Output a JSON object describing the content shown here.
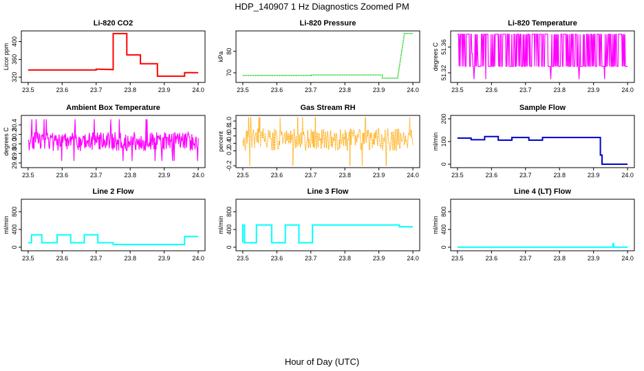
{
  "figure": {
    "title": "HDP_140907  1 Hz Diagnostics Zoomed PM",
    "xlabel": "Hour of Day (UTC)"
  },
  "chart_data": [
    {
      "type": "line",
      "title": "Li-820 CO2",
      "ylabel": "Licor ppm",
      "color": "#ff0000",
      "xlim": [
        23.48,
        24.02
      ],
      "ylim": [
        308,
        424
      ],
      "xticks": [
        "23.5",
        "23.6",
        "23.7",
        "23.8",
        "23.9",
        "24.0"
      ],
      "xtick_values": [
        23.5,
        23.6,
        23.7,
        23.8,
        23.9,
        24.0
      ],
      "yticks": [
        "320",
        "360",
        "400"
      ],
      "ytick_values": [
        320,
        360,
        400
      ],
      "series": [
        {
          "style": "steps",
          "x": [
            23.5,
            23.7,
            23.7,
            23.75,
            23.75,
            23.79,
            23.79,
            23.83,
            23.83,
            23.88,
            23.88,
            23.96,
            23.96,
            24.0
          ],
          "y": [
            336,
            336,
            338,
            337,
            418,
            418,
            370,
            370,
            350,
            350,
            322,
            322,
            330,
            330
          ]
        }
      ]
    },
    {
      "type": "line",
      "title": "Li-820 Pressure",
      "ylabel": "kPa",
      "color": "#00cc00",
      "xlim": [
        23.48,
        24.02
      ],
      "ylim": [
        65.5,
        89.5
      ],
      "xticks": [
        "23.5",
        "23.6",
        "23.7",
        "23.8",
        "23.9",
        "24.0"
      ],
      "xtick_values": [
        23.5,
        23.6,
        23.7,
        23.8,
        23.9,
        24.0
      ],
      "yticks": [
        "70",
        "80"
      ],
      "ytick_values": [
        70,
        80
      ],
      "series": [
        {
          "style": "points",
          "x": [
            23.5,
            23.7,
            23.7,
            23.91,
            23.91,
            23.955,
            23.97,
            23.975,
            24.0
          ],
          "y": [
            68.8,
            68.8,
            69.0,
            69.0,
            67.5,
            67.5,
            83,
            88.3,
            88.3
          ]
        }
      ]
    },
    {
      "type": "line",
      "title": "Li-820 Temperature",
      "ylabel": "degrees C",
      "color": "#ff00ff",
      "xlim": [
        23.48,
        24.02
      ],
      "ylim": [
        51.305,
        51.385
      ],
      "xticks": [
        "23.5",
        "23.6",
        "23.7",
        "23.8",
        "23.9",
        "24.0"
      ],
      "xtick_values": [
        23.5,
        23.6,
        23.7,
        23.8,
        23.9,
        24.0
      ],
      "yticks": [
        "51.32",
        "51.36"
      ],
      "ytick_values": [
        51.32,
        51.36
      ],
      "series": [
        {
          "style": "noise",
          "levels": [
            51.31,
            51.33,
            51.35,
            51.38
          ],
          "dominant": [
            51.33,
            51.38
          ]
        }
      ]
    },
    {
      "type": "line",
      "title": "Ambient Box Temperature",
      "ylabel": "degrees C",
      "color": "#ff00ff",
      "xlim": [
        23.48,
        24.02
      ],
      "ylim": [
        29.5,
        30.6
      ],
      "xticks": [
        "23.5",
        "23.6",
        "23.7",
        "23.8",
        "23.9",
        "24.0"
      ],
      "xtick_values": [
        23.5,
        23.6,
        23.7,
        23.8,
        23.9,
        24.0
      ],
      "yticks": [
        "29.6",
        "29.8",
        "30.0",
        "30.2",
        "30.4"
      ],
      "ytick_values": [
        29.6,
        29.8,
        30.0,
        30.2,
        30.4
      ],
      "series": [
        {
          "style": "noise",
          "mean": 30.05,
          "spread": 0.2,
          "min": 29.64,
          "max": 30.52
        }
      ]
    },
    {
      "type": "line",
      "title": "Gas Stream RH",
      "ylabel": "percent",
      "color": "#ffa500",
      "xlim": [
        23.48,
        24.02
      ],
      "ylim": [
        -0.25,
        1.15
      ],
      "xticks": [
        "23.5",
        "23.6",
        "23.7",
        "23.8",
        "23.9",
        "24.0"
      ],
      "xtick_values": [
        23.5,
        23.6,
        23.7,
        23.8,
        23.9,
        24.0
      ],
      "yticks": [
        "-0.2",
        "0.2",
        "0.4",
        "0.6",
        "0.8",
        "1.0"
      ],
      "ytick_values": [
        -0.2,
        0.2,
        0.4,
        0.6,
        0.8,
        1.0
      ],
      "series": [
        {
          "style": "noise",
          "mean": 0.5,
          "spread": 0.3,
          "min": -0.2,
          "max": 1.1
        }
      ]
    },
    {
      "type": "line",
      "title": "Sample Flow",
      "ylabel": "ml/min",
      "color": "#0000cc",
      "xlim": [
        23.48,
        24.02
      ],
      "ylim": [
        -15,
        215
      ],
      "xticks": [
        "23.5",
        "23.6",
        "23.7",
        "23.8",
        "23.9",
        "24.0"
      ],
      "xtick_values": [
        23.5,
        23.6,
        23.7,
        23.8,
        23.9,
        24.0
      ],
      "yticks": [
        "0",
        "100",
        "200"
      ],
      "ytick_values": [
        0,
        100,
        200
      ],
      "series": [
        {
          "style": "steps",
          "x": [
            23.5,
            23.54,
            23.54,
            23.58,
            23.58,
            23.62,
            23.62,
            23.66,
            23.66,
            23.71,
            23.71,
            23.75,
            23.75,
            23.92,
            23.92,
            23.925,
            23.925,
            24.0
          ],
          "y": [
            115,
            115,
            108,
            108,
            122,
            122,
            106,
            106,
            118,
            118,
            106,
            106,
            118,
            118,
            40,
            40,
            0,
            0
          ]
        }
      ]
    },
    {
      "type": "line",
      "title": "Line 2 Flow",
      "ylabel": "ml/min",
      "color": "#00ffff",
      "xlim": [
        23.48,
        24.02
      ],
      "ylim": [
        -80,
        1080
      ],
      "xticks": [
        "23.5",
        "23.6",
        "23.7",
        "23.8",
        "23.9",
        "24.0"
      ],
      "xtick_values": [
        23.5,
        23.6,
        23.7,
        23.8,
        23.9,
        24.0
      ],
      "yticks": [
        "0",
        "400",
        "800"
      ],
      "ytick_values": [
        0,
        400,
        800
      ],
      "series": [
        {
          "style": "steps",
          "x": [
            23.5,
            23.51,
            23.51,
            23.54,
            23.54,
            23.585,
            23.585,
            23.625,
            23.625,
            23.665,
            23.665,
            23.705,
            23.705,
            23.75,
            23.75,
            23.96,
            23.96,
            24.0
          ],
          "y": [
            100,
            100,
            280,
            280,
            100,
            100,
            280,
            280,
            100,
            100,
            280,
            280,
            100,
            100,
            60,
            60,
            240,
            240
          ]
        }
      ]
    },
    {
      "type": "line",
      "title": "Line 3 Flow",
      "ylabel": "ml/min",
      "color": "#00ffff",
      "xlim": [
        23.48,
        24.02
      ],
      "ylim": [
        -80,
        1080
      ],
      "xticks": [
        "23.5",
        "23.6",
        "23.7",
        "23.8",
        "23.9",
        "24.0"
      ],
      "xtick_values": [
        23.5,
        23.6,
        23.7,
        23.8,
        23.9,
        24.0
      ],
      "yticks": [
        "0",
        "400",
        "800"
      ],
      "ytick_values": [
        0,
        400,
        800
      ],
      "series": [
        {
          "style": "steps",
          "x": [
            23.5,
            23.5,
            23.505,
            23.505,
            23.54,
            23.54,
            23.585,
            23.585,
            23.625,
            23.625,
            23.665,
            23.665,
            23.705,
            23.705,
            23.96,
            23.96,
            24.0
          ],
          "y": [
            100,
            500,
            500,
            100,
            100,
            500,
            500,
            100,
            100,
            500,
            500,
            100,
            100,
            500,
            500,
            460,
            460
          ]
        }
      ]
    },
    {
      "type": "line",
      "title": "Line 4 (LT) Flow",
      "ylabel": "ml/min",
      "color": "#00ffff",
      "xlim": [
        23.48,
        24.02
      ],
      "ylim": [
        -80,
        1080
      ],
      "xticks": [
        "23.5",
        "23.6",
        "23.7",
        "23.8",
        "23.9",
        "24.0"
      ],
      "xtick_values": [
        23.5,
        23.6,
        23.7,
        23.8,
        23.9,
        24.0
      ],
      "yticks": [
        "0",
        "400",
        "800"
      ],
      "ytick_values": [
        0,
        400,
        800
      ],
      "series": [
        {
          "style": "steps",
          "x": [
            23.5,
            23.957,
            23.957,
            23.959,
            23.959,
            24.0
          ],
          "y": [
            0,
            0,
            80,
            80,
            0,
            0
          ]
        }
      ]
    }
  ]
}
